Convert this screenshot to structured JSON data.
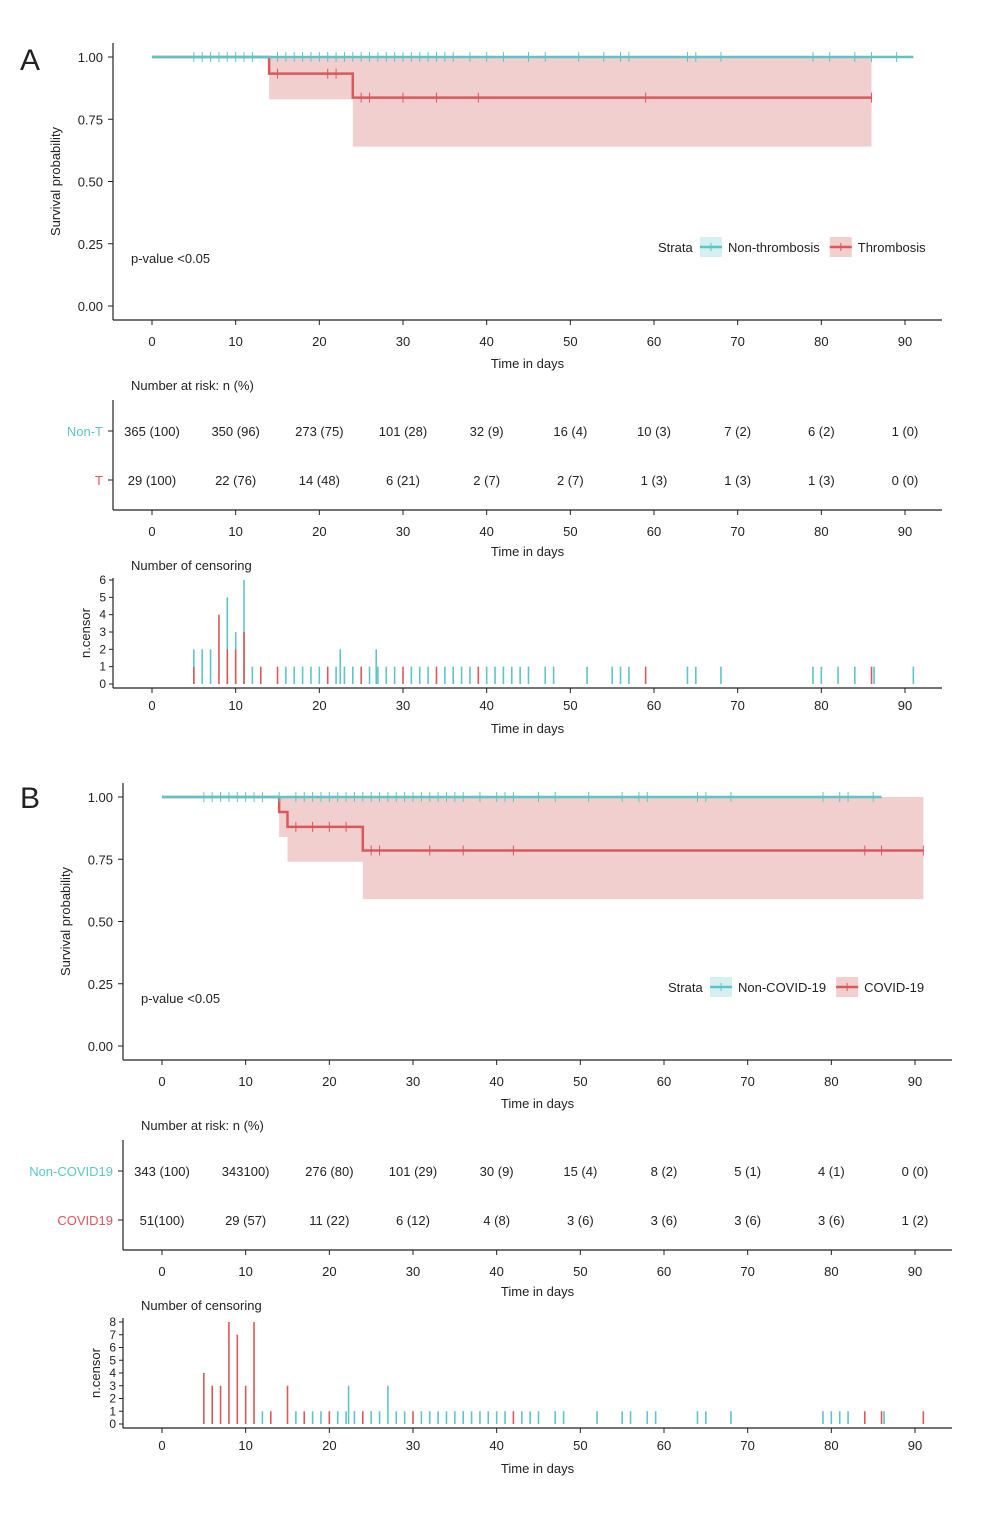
{
  "colors": {
    "non": "#5ec4c8",
    "thr": "#d9585a",
    "ci": "#f2cfcf",
    "axis": "#222222"
  },
  "x_ticks": [
    0,
    10,
    20,
    30,
    40,
    50,
    60,
    70,
    80,
    90
  ],
  "x_tick_labels": [
    "0",
    "10",
    "20",
    "30",
    "40",
    "50",
    "60",
    "70",
    "80",
    "90"
  ],
  "y_ticks": [
    0,
    0.25,
    0.5,
    0.75,
    1.0
  ],
  "y_tick_labels": [
    "0.00",
    "0.25",
    "0.50",
    "0.75",
    "1.00"
  ],
  "xlabel": "Time in days",
  "ylabel": "Survival probability",
  "risk_title": "Number at risk: n (%)",
  "censor_title": "Number of censoring",
  "censor_ylabel": "n.censor",
  "chart_data": [
    {
      "panel": "A",
      "type": "line",
      "title": "",
      "xlabel": "Time in days",
      "ylabel": "Survival probability",
      "xlim": [
        0,
        90
      ],
      "ylim": [
        0,
        1
      ],
      "pvalue": "p-value <0.05",
      "legend_title": "Strata",
      "series": [
        {
          "name": "Non-thrombosis",
          "risk_label": "Non-T",
          "end": 91,
          "steps": [
            [
              0,
              1.0
            ]
          ],
          "censor_times": [
            5,
            6,
            7,
            8,
            9,
            10,
            11,
            12,
            15,
            16,
            17,
            18,
            19,
            20,
            21,
            22,
            23,
            24,
            25,
            26,
            27,
            28,
            29,
            30,
            31,
            32,
            33,
            34,
            35,
            36,
            38,
            40,
            42,
            45,
            47,
            51,
            54,
            56,
            57,
            64,
            65,
            68,
            79,
            81,
            84,
            86,
            89
          ]
        },
        {
          "name": "Thrombosis",
          "risk_label": "T",
          "end": 86,
          "steps": [
            [
              0,
              1.0
            ],
            [
              14,
              0.933
            ],
            [
              24,
              0.837
            ]
          ],
          "ci": [
            [
              0,
              1.0,
              1.0
            ],
            [
              14,
              1.0,
              0.83
            ],
            [
              24,
              1.0,
              0.64
            ]
          ],
          "censor_times": [
            15,
            21,
            22,
            25,
            26,
            30,
            34,
            39,
            59,
            86
          ]
        }
      ],
      "risk_table": {
        "Non-thrombosis": [
          "365 (100)",
          "350 (96)",
          "273 (75)",
          "101 (28)",
          "32 (9)",
          "16 (4)",
          "10 (3)",
          "7 (2)",
          "6 (2)",
          "1 (0)"
        ],
        "Thrombosis": [
          "29 (100)",
          "22 (76)",
          "14 (48)",
          "6 (21)",
          "2 (7)",
          "2 (7)",
          "1 (3)",
          "1 (3)",
          "1 (3)",
          "0 (0)"
        ]
      },
      "censoring": {
        "ylim": [
          0,
          6
        ],
        "ticks": [
          0,
          1,
          2,
          3,
          4,
          5,
          6
        ],
        "events": [
          [
            5,
            2,
            "n"
          ],
          [
            5,
            1,
            "t"
          ],
          [
            6,
            2,
            "n"
          ],
          [
            7,
            2,
            "n"
          ],
          [
            8,
            4,
            "t"
          ],
          [
            9,
            5,
            "n"
          ],
          [
            9,
            2,
            "t"
          ],
          [
            10,
            3,
            "n"
          ],
          [
            10,
            2,
            "t"
          ],
          [
            11,
            6,
            "n"
          ],
          [
            11,
            3,
            "t"
          ],
          [
            12,
            1,
            "n"
          ],
          [
            13,
            1,
            "t"
          ],
          [
            15,
            1,
            "t"
          ],
          [
            16,
            1,
            "n"
          ],
          [
            17,
            1,
            "n"
          ],
          [
            18,
            1,
            "n"
          ],
          [
            19,
            1,
            "n"
          ],
          [
            20,
            1,
            "n"
          ],
          [
            21,
            1,
            "t"
          ],
          [
            22,
            1,
            "n"
          ],
          [
            22.5,
            2,
            "n"
          ],
          [
            23,
            1,
            "n"
          ],
          [
            24,
            1,
            "n"
          ],
          [
            25,
            1,
            "t"
          ],
          [
            26,
            1,
            "n"
          ],
          [
            26.8,
            2,
            "n"
          ],
          [
            27,
            1,
            "n"
          ],
          [
            28,
            1,
            "n"
          ],
          [
            29,
            1,
            "n"
          ],
          [
            30,
            1,
            "t"
          ],
          [
            31,
            1,
            "n"
          ],
          [
            32,
            1,
            "n"
          ],
          [
            33,
            1,
            "n"
          ],
          [
            34,
            1,
            "t"
          ],
          [
            35,
            1,
            "n"
          ],
          [
            36,
            1,
            "n"
          ],
          [
            37,
            1,
            "n"
          ],
          [
            38,
            1,
            "n"
          ],
          [
            39,
            1,
            "t"
          ],
          [
            40,
            1,
            "n"
          ],
          [
            41,
            1,
            "n"
          ],
          [
            42,
            1,
            "n"
          ],
          [
            43,
            1,
            "n"
          ],
          [
            44,
            1,
            "n"
          ],
          [
            45,
            1,
            "n"
          ],
          [
            47,
            1,
            "n"
          ],
          [
            48,
            1,
            "n"
          ],
          [
            52,
            1,
            "n"
          ],
          [
            55,
            1,
            "n"
          ],
          [
            56,
            1,
            "n"
          ],
          [
            57,
            1,
            "n"
          ],
          [
            59,
            1,
            "t"
          ],
          [
            64,
            1,
            "n"
          ],
          [
            65,
            1,
            "n"
          ],
          [
            68,
            1,
            "n"
          ],
          [
            79,
            1,
            "n"
          ],
          [
            80,
            1,
            "n"
          ],
          [
            82,
            1,
            "n"
          ],
          [
            84,
            1,
            "n"
          ],
          [
            86,
            1,
            "t"
          ],
          [
            86.3,
            1,
            "n"
          ],
          [
            91,
            1,
            "n"
          ]
        ]
      }
    },
    {
      "panel": "B",
      "type": "line",
      "title": "",
      "xlabel": "Time in days",
      "ylabel": "Survival probability",
      "xlim": [
        0,
        90
      ],
      "ylim": [
        0,
        1
      ],
      "pvalue": "p-value <0.05",
      "legend_title": "Strata",
      "series": [
        {
          "name": "Non-COVID-19",
          "risk_label": "Non-COVID19",
          "end": 86,
          "steps": [
            [
              0,
              1.0
            ]
          ],
          "censor_times": [
            5,
            6,
            7,
            8,
            9,
            10,
            11,
            12,
            14,
            16,
            17,
            18,
            19,
            20,
            21,
            22,
            23,
            24,
            25,
            26,
            27,
            28,
            29,
            30,
            31,
            32,
            33,
            34,
            35,
            36,
            38,
            40,
            41,
            42,
            45,
            47,
            51,
            55,
            57,
            58,
            64,
            65,
            68,
            79,
            81,
            82,
            85
          ]
        },
        {
          "name": "COVID-19",
          "risk_label": "COVID19",
          "end": 91,
          "steps": [
            [
              0,
              1.0
            ],
            [
              14,
              0.94
            ],
            [
              15,
              0.88
            ],
            [
              24,
              0.785
            ]
          ],
          "ci": [
            [
              0,
              1.0,
              1.0
            ],
            [
              14,
              1.0,
              0.84
            ],
            [
              15,
              1.0,
              0.74
            ],
            [
              24,
              1.0,
              0.59
            ]
          ],
          "censor_times": [
            16,
            18,
            20,
            22,
            25,
            26,
            32,
            36,
            42,
            84,
            86,
            91
          ]
        }
      ],
      "risk_table": {
        "Non-COVID-19": [
          "343 (100)",
          "343100)",
          "276 (80)",
          "101 (29)",
          "30 (9)",
          "15 (4)",
          "8 (2)",
          "5 (1)",
          "4 (1)",
          "0 (0)"
        ],
        "COVID-19": [
          "51(100)",
          "29 (57)",
          "11 (22)",
          "6 (12)",
          "4 (8)",
          "3 (6)",
          "3 (6)",
          "3 (6)",
          "3 (6)",
          "1 (2)"
        ]
      },
      "censoring": {
        "ylim": [
          0,
          8
        ],
        "ticks": [
          0,
          1,
          2,
          3,
          4,
          5,
          6,
          7,
          8
        ],
        "events": [
          [
            5,
            4,
            "t"
          ],
          [
            6,
            3,
            "t"
          ],
          [
            7,
            3,
            "t"
          ],
          [
            8,
            8,
            "t"
          ],
          [
            9,
            7,
            "t"
          ],
          [
            10,
            3,
            "t"
          ],
          [
            11,
            8,
            "t"
          ],
          [
            12,
            1,
            "n"
          ],
          [
            13,
            1,
            "t"
          ],
          [
            15,
            3,
            "t"
          ],
          [
            16,
            1,
            "n"
          ],
          [
            17,
            1,
            "t"
          ],
          [
            18,
            1,
            "n"
          ],
          [
            19,
            1,
            "n"
          ],
          [
            20,
            1,
            "t"
          ],
          [
            21,
            1,
            "n"
          ],
          [
            22,
            1,
            "n"
          ],
          [
            22.3,
            3,
            "n"
          ],
          [
            23,
            1,
            "n"
          ],
          [
            24,
            1,
            "t"
          ],
          [
            25,
            1,
            "n"
          ],
          [
            26,
            1,
            "n"
          ],
          [
            27,
            3,
            "n"
          ],
          [
            28,
            1,
            "n"
          ],
          [
            29,
            1,
            "n"
          ],
          [
            30,
            1,
            "t"
          ],
          [
            31,
            1,
            "n"
          ],
          [
            32,
            1,
            "n"
          ],
          [
            33,
            1,
            "n"
          ],
          [
            34,
            1,
            "n"
          ],
          [
            35,
            1,
            "n"
          ],
          [
            36,
            1,
            "n"
          ],
          [
            37,
            1,
            "n"
          ],
          [
            38,
            1,
            "n"
          ],
          [
            39,
            1,
            "n"
          ],
          [
            40,
            1,
            "n"
          ],
          [
            41,
            1,
            "n"
          ],
          [
            42,
            1,
            "t"
          ],
          [
            43,
            1,
            "n"
          ],
          [
            44,
            1,
            "n"
          ],
          [
            45,
            1,
            "n"
          ],
          [
            47,
            1,
            "n"
          ],
          [
            48,
            1,
            "n"
          ],
          [
            52,
            1,
            "n"
          ],
          [
            55,
            1,
            "n"
          ],
          [
            56,
            1,
            "n"
          ],
          [
            58,
            1,
            "n"
          ],
          [
            59,
            1,
            "n"
          ],
          [
            64,
            1,
            "n"
          ],
          [
            65,
            1,
            "n"
          ],
          [
            68,
            1,
            "n"
          ],
          [
            79,
            1,
            "n"
          ],
          [
            80,
            1,
            "n"
          ],
          [
            81,
            1,
            "n"
          ],
          [
            82,
            1,
            "n"
          ],
          [
            84,
            1,
            "t"
          ],
          [
            86,
            1,
            "t"
          ],
          [
            86.3,
            1,
            "n"
          ],
          [
            91,
            1,
            "t"
          ]
        ]
      }
    }
  ]
}
